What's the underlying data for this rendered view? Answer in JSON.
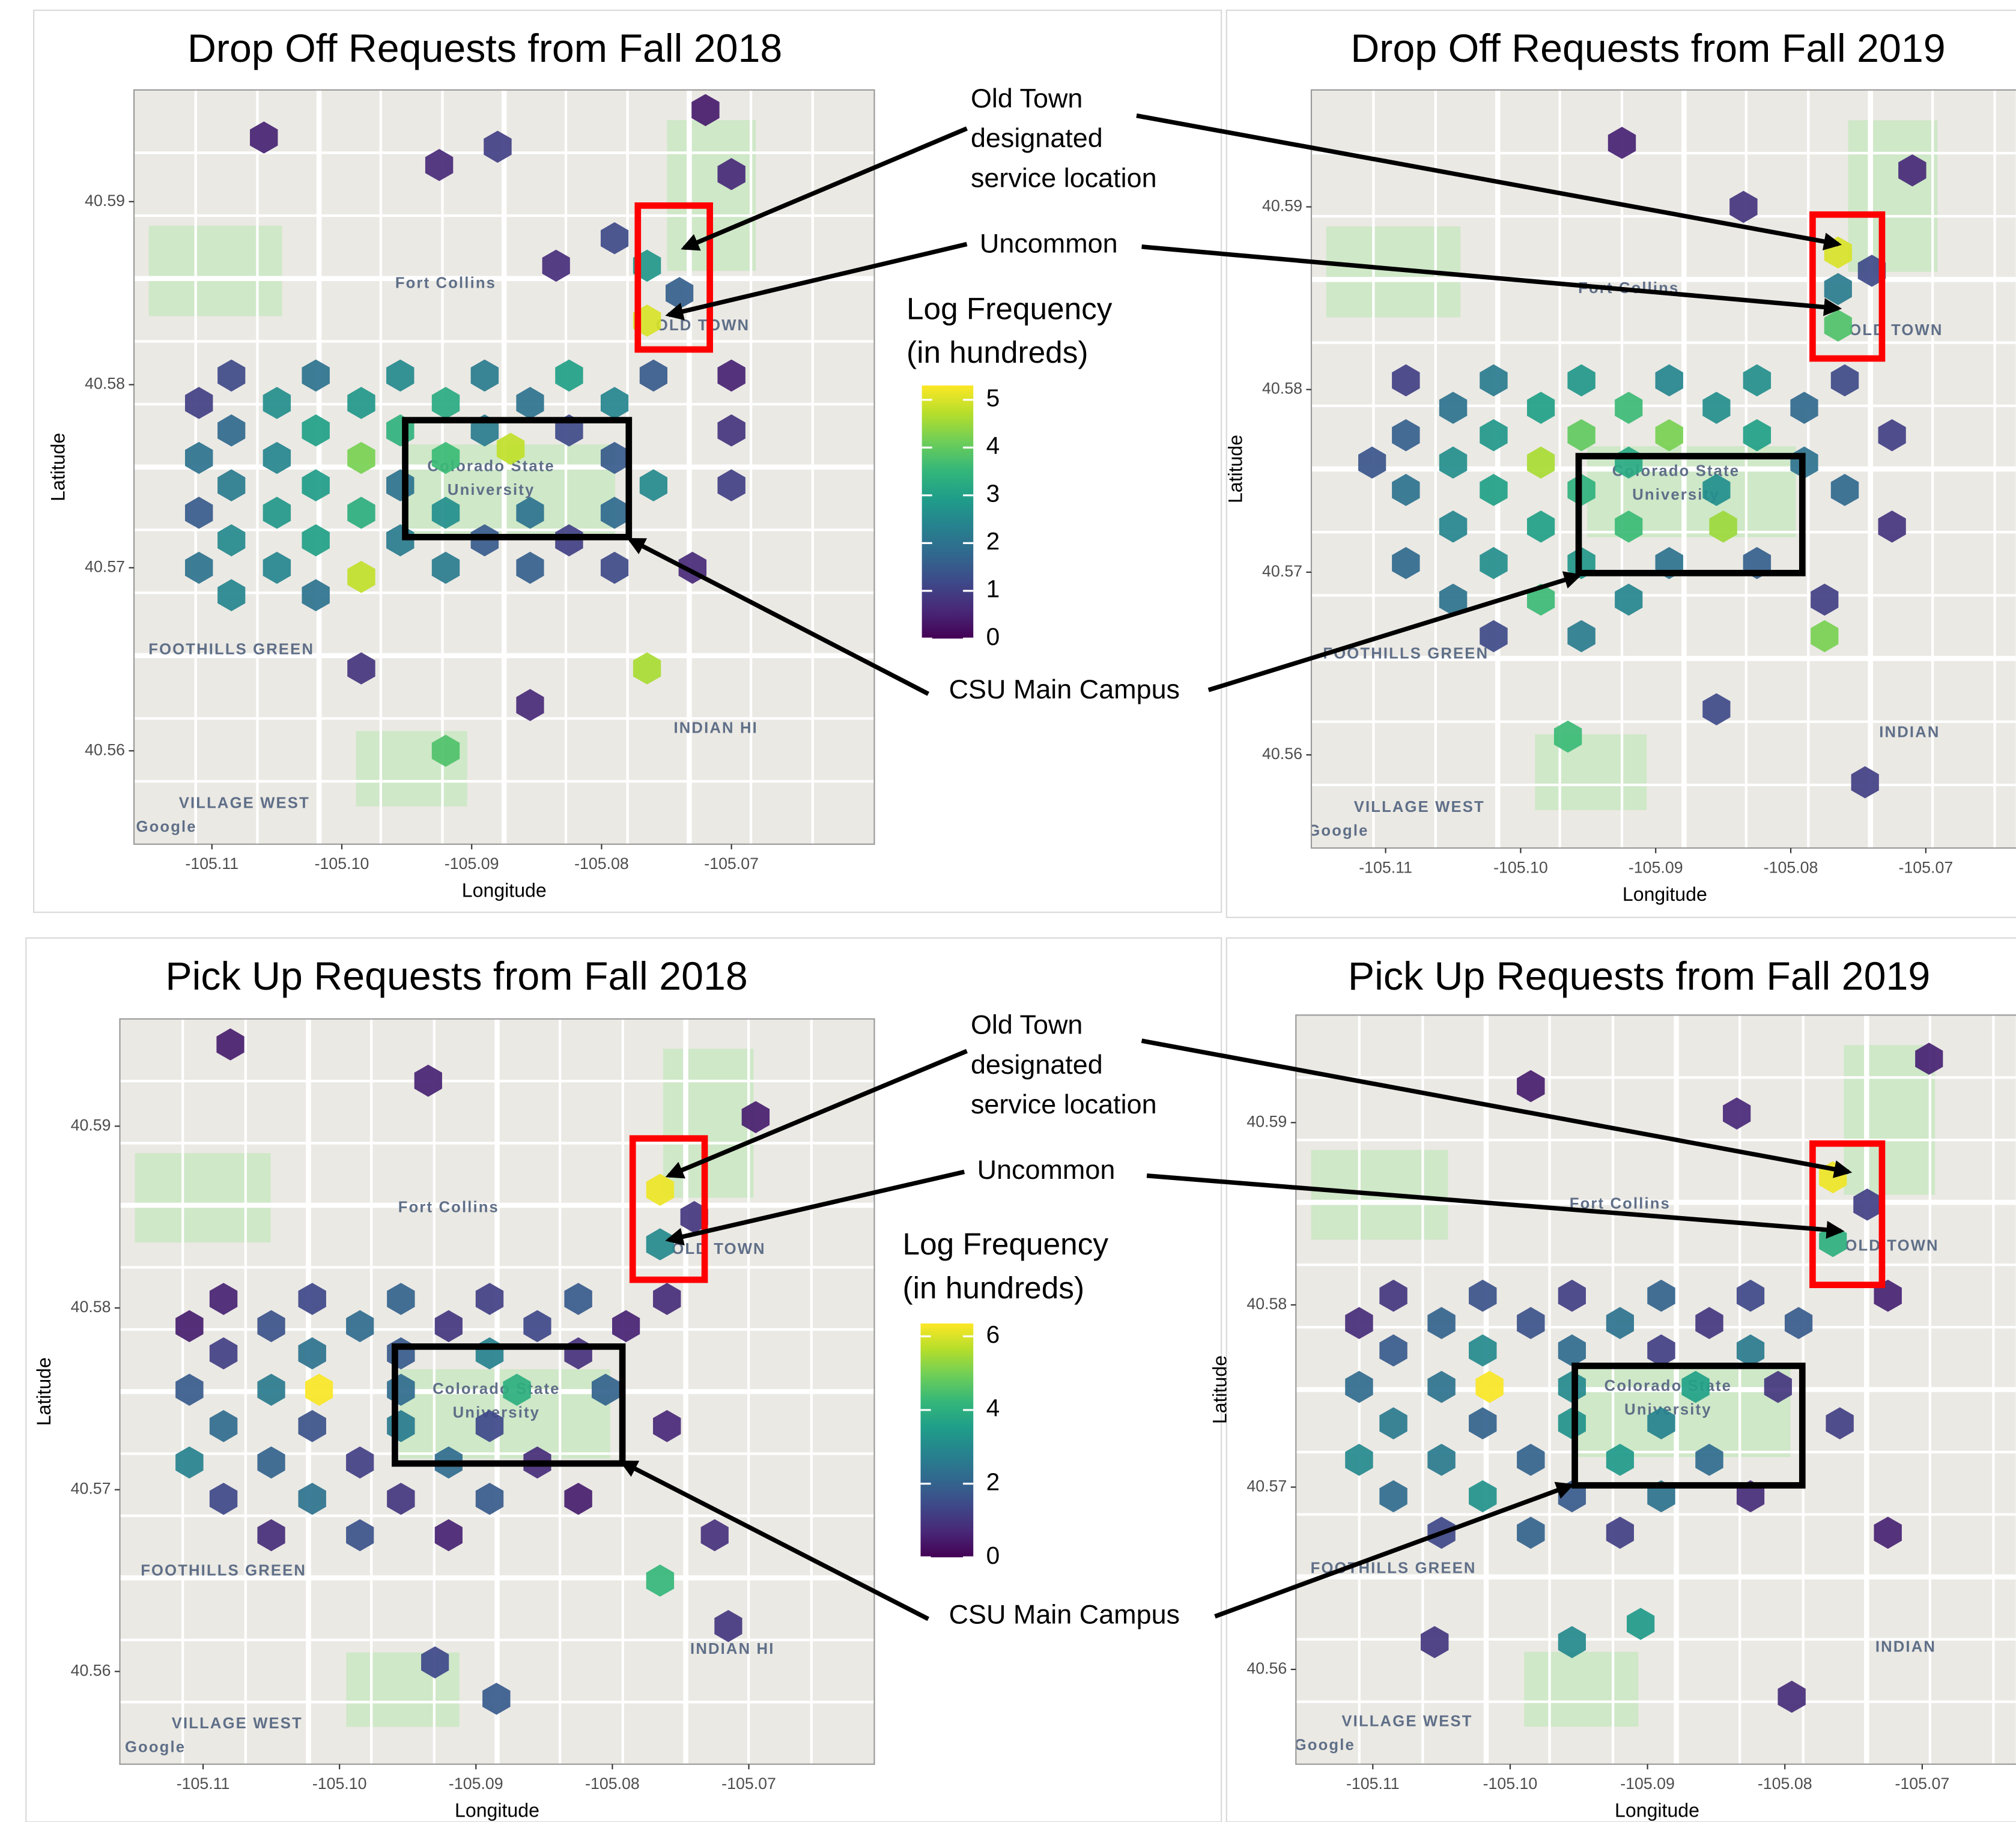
{
  "chart_data": [
    {
      "type": "hexbin",
      "title": "Drop Off Requests from Fall 2018",
      "xlabel": "Longitude",
      "ylabel": "Latitude",
      "xlim": [
        -105.116,
        -105.059
      ],
      "ylim": [
        40.5549,
        40.5961
      ],
      "xticks": [
        -105.11,
        {
          "value": -105.1,
          "label": "-105.10"
        },
        -105.09,
        -105.08,
        -105.07
      ],
      "yticks": [
        40.56,
        40.57,
        40.58,
        40.59
      ],
      "clim": [
        0,
        5.3
      ],
      "colorbar_title": [
        "Log Frequency",
        "(in hundreds)"
      ],
      "colorbar_ticks": [
        0,
        1,
        2,
        3,
        4,
        5
      ],
      "map_labels": [
        "Fort Collins",
        "Colorado State",
        "University",
        "OLD TOWN",
        "VILLAGE WEST",
        "FOOTHILLS GREEN",
        "INDIAN HI",
        "Google"
      ],
      "x": [
        -105.1085,
        -105.102,
        -105.0955,
        -105.089,
        -105.0825,
        -105.076,
        -105.07,
        -105.111,
        -105.105,
        -105.0985,
        -105.092,
        -105.0855,
        -105.079,
        -105.1085,
        -105.102,
        -105.0955,
        -105.089,
        -105.0825,
        -105.07,
        -105.111,
        -105.105,
        -105.0985,
        -105.092,
        -105.087,
        -105.079,
        -105.1085,
        -105.102,
        -105.0955,
        -105.076,
        -105.07,
        -105.111,
        -105.105,
        -105.0985,
        -105.092,
        -105.0855,
        -105.079,
        -105.1085,
        -105.102,
        -105.0955,
        -105.089,
        -105.0825,
        -105.111,
        -105.105,
        -105.0985,
        -105.092,
        -105.0855,
        -105.079,
        -105.073,
        -105.1085,
        -105.102,
        -105.0765,
        -105.0765,
        -105.074,
        -105.079,
        -105.106,
        -105.0925,
        -105.088,
        -105.072,
        -105.07,
        -105.0835,
        -105.0765,
        -105.0985,
        -105.092,
        -105.0855
      ],
      "y": [
        40.5805,
        40.5805,
        40.5805,
        40.5805,
        40.5805,
        40.5805,
        40.5805,
        40.579,
        40.579,
        40.579,
        40.579,
        40.579,
        40.579,
        40.5775,
        40.5775,
        40.5775,
        40.5775,
        40.5775,
        40.5775,
        40.576,
        40.576,
        40.576,
        40.576,
        40.5765,
        40.576,
        40.5745,
        40.5745,
        40.5745,
        40.5745,
        40.5745,
        40.573,
        40.573,
        40.573,
        40.573,
        40.573,
        40.573,
        40.5715,
        40.5715,
        40.5715,
        40.5715,
        40.5715,
        40.57,
        40.57,
        40.5695,
        40.57,
        40.57,
        40.57,
        40.57,
        40.5685,
        40.5685,
        40.5865,
        40.5835,
        40.585,
        40.588,
        40.5935,
        40.592,
        40.593,
        40.595,
        40.5915,
        40.5865,
        40.5645,
        40.5645,
        40.56,
        40.5625
      ],
      "values": [
        1.2,
        2.0,
        2.5,
        2.2,
        3.0,
        1.5,
        0.5,
        1.0,
        2.6,
        2.8,
        3.2,
        2.0,
        2.4,
        1.8,
        3.0,
        3.4,
        2.2,
        1.2,
        0.8,
        2.0,
        2.4,
        4.2,
        3.6,
        4.8,
        1.5,
        2.2,
        2.9,
        2.0,
        2.5,
        1.0,
        1.5,
        2.8,
        3.3,
        2.6,
        2.0,
        1.8,
        2.5,
        3.0,
        2.2,
        1.5,
        1.0,
        2.0,
        2.4,
        4.8,
        2.2,
        1.6,
        1.2,
        0.6,
        2.4,
        2.0,
        2.8,
        5.0,
        1.6,
        1.2,
        0.5,
        0.6,
        1.0,
        0.4,
        0.6,
        0.7,
        4.6,
        0.8,
        3.8,
        0.6
      ]
    },
    {
      "type": "hexbin",
      "title": "Drop Off Requests from Fall 2019",
      "xlabel": "Longitude",
      "ylabel": "Latitude",
      "xlim": [
        -105.1155,
        -105.0603
      ],
      "ylim": [
        40.5549,
        40.5964
      ],
      "xticks": [
        -105.11,
        {
          "value": -105.1,
          "label": "-105.10"
        },
        -105.09,
        -105.08,
        -105.07
      ],
      "yticks": [
        40.56,
        40.57,
        40.58,
        40.59
      ],
      "clim": [
        0,
        5.3
      ],
      "map_labels": [
        "Fort Collins",
        "Colorado State",
        "University",
        "OLD TOWN",
        "VILLAGE WEST",
        "FOOTHILLS GREEN",
        "INDIAN",
        "Google"
      ],
      "x": [
        -105.1085,
        -105.102,
        -105.0955,
        -105.089,
        -105.0825,
        -105.076,
        -105.105,
        -105.0985,
        -105.092,
        -105.0855,
        -105.079,
        -105.1085,
        -105.102,
        -105.0955,
        -105.089,
        -105.0825,
        -105.0725,
        -105.111,
        -105.105,
        -105.0985,
        -105.092,
        -105.079,
        -105.1085,
        -105.102,
        -105.0955,
        -105.0855,
        -105.076,
        -105.105,
        -105.0985,
        -105.092,
        -105.085,
        -105.0725,
        -105.1085,
        -105.102,
        -105.0955,
        -105.089,
        -105.0825,
        -105.105,
        -105.0985,
        -105.092,
        -105.0775,
        -105.102,
        -105.0955,
        -105.0775,
        -105.0765,
        -105.0765,
        -105.0765,
        -105.074,
        -105.0835,
        -105.0925,
        -105.071,
        -105.0965,
        -105.0855,
        -105.0745
      ],
      "y": [
        40.5805,
        40.5805,
        40.5805,
        40.5805,
        40.5805,
        40.5805,
        40.579,
        40.579,
        40.579,
        40.579,
        40.579,
        40.5775,
        40.5775,
        40.5775,
        40.5775,
        40.5775,
        40.5775,
        40.576,
        40.576,
        40.576,
        40.576,
        40.576,
        40.5745,
        40.5745,
        40.5745,
        40.5745,
        40.5745,
        40.5725,
        40.5725,
        40.5725,
        40.5725,
        40.5725,
        40.5705,
        40.5705,
        40.5705,
        40.5705,
        40.5705,
        40.5685,
        40.5685,
        40.5685,
        40.5685,
        40.5665,
        40.5665,
        40.5665,
        40.5875,
        40.5855,
        40.5835,
        40.5865,
        40.59,
        40.5935,
        40.592,
        40.561,
        40.5625,
        40.5585
      ],
      "values": [
        1.0,
        2.2,
        2.8,
        2.4,
        2.6,
        1.2,
        2.0,
        3.0,
        3.6,
        2.6,
        1.8,
        1.6,
        2.8,
        4.0,
        4.2,
        3.0,
        1.0,
        1.4,
        2.6,
        4.6,
        3.2,
        2.0,
        2.0,
        3.0,
        3.4,
        2.6,
        1.8,
        2.4,
        3.0,
        3.6,
        4.5,
        0.8,
        1.8,
        2.6,
        2.8,
        2.0,
        1.6,
        2.0,
        3.6,
        2.4,
        1.0,
        1.2,
        2.2,
        4.2,
        5.0,
        2.2,
        3.8,
        1.2,
        0.8,
        0.5,
        0.6,
        3.6,
        1.2,
        1.0
      ]
    },
    {
      "type": "hexbin",
      "title": "Pick Up Requests from Fall 2018",
      "xlabel": "Longitude",
      "ylabel": "Latitude",
      "xlim": [
        -105.1161,
        -105.0608
      ],
      "ylim": [
        40.5549,
        40.5959
      ],
      "xticks": [
        -105.11,
        {
          "value": -105.1,
          "label": "-105.10"
        },
        -105.09,
        -105.08,
        -105.07
      ],
      "yticks": [
        40.56,
        40.57,
        40.58,
        40.59
      ],
      "clim": [
        0,
        6.35
      ],
      "colorbar_title": [
        "Log Frequency",
        "(in hundreds)"
      ],
      "colorbar_ticks": [
        0,
        2,
        4,
        6
      ],
      "map_labels": [
        "Fort Collins",
        "Colorado State",
        "University",
        "OLD TOWN",
        "VILLAGE WEST",
        "FOOTHILLS GREEN",
        "INDIAN HI",
        "Google"
      ],
      "x": [
        -105.1085,
        -105.102,
        -105.0955,
        -105.089,
        -105.0825,
        -105.076,
        -105.111,
        -105.105,
        -105.0985,
        -105.092,
        -105.0855,
        -105.079,
        -105.1085,
        -105.102,
        -105.0955,
        -105.089,
        -105.0825,
        -105.111,
        -105.105,
        -105.1015,
        -105.0955,
        -105.087,
        -105.0805,
        -105.1085,
        -105.102,
        -105.0955,
        -105.089,
        -105.076,
        -105.111,
        -105.105,
        -105.0985,
        -105.092,
        -105.0855,
        -105.1085,
        -105.102,
        -105.0955,
        -105.089,
        -105.0825,
        -105.105,
        -105.0985,
        -105.092,
        -105.0725,
        -105.0765,
        -105.0765,
        -105.074,
        -105.108,
        -105.0935,
        -105.0695,
        -105.0765,
        -105.0715,
        -105.093,
        -105.0885
      ],
      "y": [
        40.5805,
        40.5805,
        40.5805,
        40.5805,
        40.5805,
        40.5805,
        40.579,
        40.579,
        40.579,
        40.579,
        40.579,
        40.579,
        40.5775,
        40.5775,
        40.5775,
        40.5775,
        40.5775,
        40.5755,
        40.5755,
        40.5755,
        40.5755,
        40.5755,
        40.5755,
        40.5735,
        40.5735,
        40.5735,
        40.5735,
        40.5735,
        40.5715,
        40.5715,
        40.5715,
        40.5715,
        40.5715,
        40.5695,
        40.5695,
        40.5695,
        40.5695,
        40.5695,
        40.5675,
        40.5675,
        40.5675,
        40.5675,
        40.5865,
        40.5835,
        40.585,
        40.5945,
        40.5925,
        40.5905,
        40.565,
        40.5625,
        40.5605,
        40.5585
      ],
      "values": [
        0.6,
        1.4,
        2.0,
        1.2,
        1.8,
        0.8,
        0.5,
        1.6,
        2.2,
        1.0,
        1.4,
        0.6,
        1.2,
        2.4,
        1.8,
        2.8,
        0.9,
        1.8,
        2.6,
        6.3,
        2.2,
        4.0,
        2.0,
        2.2,
        1.6,
        2.6,
        1.4,
        0.7,
        2.8,
        2.0,
        1.2,
        2.2,
        0.8,
        1.4,
        2.4,
        1.0,
        1.8,
        0.5,
        0.8,
        1.6,
        0.6,
        0.9,
        6.2,
        3.0,
        1.0,
        0.5,
        0.6,
        0.5,
        4.2,
        1.0,
        1.4,
        1.8
      ]
    },
    {
      "type": "hexbin",
      "title": "Pick Up Requests from Fall 2019",
      "xlabel": "Longitude",
      "ylabel": "Latitude",
      "xlim": [
        -105.1156,
        -105.0602
      ],
      "ylim": [
        40.5548,
        40.5959
      ],
      "xticks": [
        -105.11,
        {
          "value": -105.1,
          "label": "-105.10"
        },
        -105.09,
        -105.08,
        -105.07
      ],
      "yticks": [
        40.56,
        40.57,
        40.58,
        40.59
      ],
      "clim": [
        0,
        6.35
      ],
      "map_labels": [
        "Fort Collins",
        "Colorado State",
        "University",
        "OLD TOWN",
        "VILLAGE WEST",
        "FOOTHILLS GREEN",
        "INDIAN",
        "Google"
      ],
      "x": [
        -105.1085,
        -105.102,
        -105.0955,
        -105.089,
        -105.0825,
        -105.0725,
        -105.111,
        -105.105,
        -105.0985,
        -105.092,
        -105.0855,
        -105.079,
        -105.1085,
        -105.102,
        -105.0955,
        -105.089,
        -105.0825,
        -105.111,
        -105.105,
        -105.1015,
        -105.0955,
        -105.0865,
        -105.0805,
        -105.1085,
        -105.102,
        -105.0955,
        -105.089,
        -105.076,
        -105.111,
        -105.105,
        -105.0985,
        -105.092,
        -105.0855,
        -105.1085,
        -105.102,
        -105.0955,
        -105.089,
        -105.0825,
        -105.105,
        -105.0985,
        -105.092,
        -105.0725,
        -105.0765,
        -105.0765,
        -105.074,
        -105.0985,
        -105.0835,
        -105.0695,
        -105.0955,
        -105.0905,
        -105.0795,
        -105.1055
      ],
      "y": [
        40.5805,
        40.5805,
        40.5805,
        40.5805,
        40.5805,
        40.5805,
        40.579,
        40.579,
        40.579,
        40.579,
        40.579,
        40.579,
        40.5775,
        40.5775,
        40.5775,
        40.5775,
        40.5775,
        40.5755,
        40.5755,
        40.5755,
        40.5755,
        40.5755,
        40.5755,
        40.5735,
        40.5735,
        40.5735,
        40.5735,
        40.5735,
        40.5715,
        40.5715,
        40.5715,
        40.5715,
        40.5715,
        40.5695,
        40.5695,
        40.5695,
        40.5695,
        40.5695,
        40.5675,
        40.5675,
        40.5675,
        40.5675,
        40.587,
        40.5835,
        40.5855,
        40.592,
        40.5905,
        40.5935,
        40.5615,
        40.5625,
        40.5585,
        40.5615
      ],
      "values": [
        1.0,
        1.6,
        1.2,
        2.0,
        1.4,
        0.6,
        0.8,
        2.0,
        1.6,
        2.4,
        1.0,
        1.8,
        1.8,
        3.0,
        2.2,
        1.2,
        2.6,
        2.2,
        2.4,
        6.3,
        3.0,
        3.6,
        1.0,
        2.6,
        2.0,
        3.2,
        2.8,
        1.2,
        3.0,
        2.6,
        2.0,
        3.4,
        2.2,
        2.2,
        3.2,
        1.8,
        2.4,
        0.8,
        1.4,
        2.0,
        1.2,
        0.6,
        6.2,
        4.0,
        1.2,
        0.5,
        0.7,
        0.6,
        3.0,
        3.4,
        0.8,
        1.0
      ]
    }
  ],
  "annotations": [
    {
      "old_town": [
        "Old Town",
        "designated",
        "service location"
      ],
      "uncommon": "Uncommon",
      "campus": "CSU Main Campus"
    },
    {
      "old_town": [
        "Old Town",
        "designated",
        "service location"
      ],
      "uncommon": "Uncommon",
      "campus": "CSU Main Campus"
    }
  ]
}
